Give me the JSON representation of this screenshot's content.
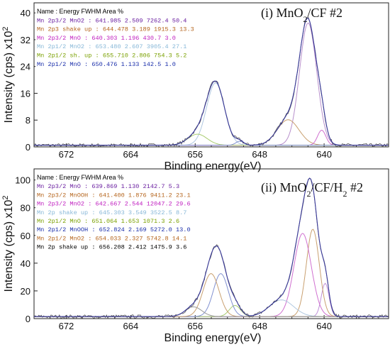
{
  "chart_data": [
    {
      "type": "line",
      "title": "(i) MnO2/CF #2",
      "title_main": "(i) MnO",
      "title_sub": "2",
      "title_tail": "/CF #2",
      "xlabel": "Binding energy(eV)",
      "ylabel": "Intensity (cps) x10",
      "ylabel_sup": "2",
      "xlim": [
        676,
        632
      ],
      "x_reversed": true,
      "ylim": [
        0,
        43
      ],
      "xticks": [
        "672",
        "664",
        "656",
        "648",
        "640"
      ],
      "xtick_values": [
        672,
        664,
        656,
        648,
        640
      ],
      "yticks": [
        "0",
        "8",
        "16",
        "24",
        "32",
        "40"
      ],
      "ytick_values": [
        0,
        8,
        16,
        24,
        32,
        40
      ],
      "legend_header": "Name : Energy  FWHM  Area  %",
      "legend": [
        {
          "text": "Mn 2p3/2 MnO2 : 641.985   2.509   7262.4   50.4",
          "color": "#6a1fa0"
        },
        {
          "text": "Mn 2p3 shake up : 644.478   3.189   1915.3   13.3",
          "color": "#b5651d"
        },
        {
          "text": "Mn 2p3/2 MnO : 640.303   1.196   430.7   3.0",
          "color": "#c020c0"
        },
        {
          "text": "Mn 2p1/2 MnO2 : 653.480   2.607   3905.4   27.1",
          "color": "#88b8d8"
        },
        {
          "text": "Mn 2p1/2 sh. up : 655.710   2.806   754.3   5.2",
          "color": "#7aa000"
        },
        {
          "text": "Mn 2p1/2 MnO : 650.476   1.133   142.5   1.0",
          "color": "#1a2eaa"
        }
      ],
      "components": [
        {
          "center": 641.985,
          "fwhm": 2.509,
          "height": 36.5,
          "color": "#b890cc"
        },
        {
          "center": 644.478,
          "fwhm": 3.189,
          "height": 7.6,
          "color": "#c9a070"
        },
        {
          "center": 640.303,
          "fwhm": 1.196,
          "height": 4.5,
          "color": "#d070d0"
        },
        {
          "center": 653.48,
          "fwhm": 2.607,
          "height": 18.6,
          "color": "#b0c8e0"
        },
        {
          "center": 655.71,
          "fwhm": 2.806,
          "height": 3.3,
          "color": "#a8cc70"
        },
        {
          "center": 650.476,
          "fwhm": 1.133,
          "height": 1.2,
          "color": "#8090d0"
        }
      ],
      "background": 0.5
    },
    {
      "type": "line",
      "title": "(ii) MnO2/CF/H2 #2",
      "title_main": "(ii) MnO",
      "title_sub": "2",
      "title_tail": "/CF/H",
      "title_sub2": "2",
      "title_tail2": " #2",
      "xlabel": "Binding energy(eV)",
      "ylabel": "Intensity (cps) x10",
      "ylabel_sup": "2",
      "xlim": [
        676,
        632
      ],
      "x_reversed": true,
      "ylim": [
        0,
        108
      ],
      "xticks": [
        "672",
        "664",
        "656",
        "648",
        "640"
      ],
      "xtick_values": [
        672,
        664,
        656,
        648,
        640
      ],
      "yticks": [
        "0",
        "20",
        "40",
        "60",
        "80",
        "100"
      ],
      "ytick_values": [
        0,
        20,
        40,
        60,
        80,
        100
      ],
      "legend_header": "Name : Energy  FWHM  Area  %",
      "legend": [
        {
          "text": "Mn 2p3/2 MnO : 639.869   1.130   2142.7   5.3",
          "color": "#6a1fa0"
        },
        {
          "text": "Mn 2p3/2 MnOOH : 641.400   1.876   9411.2   23.1",
          "color": "#b5651d"
        },
        {
          "text": "Mn 2p3/2 MnO2 : 642.667   2.544   12047.2   29.6",
          "color": "#c020c0"
        },
        {
          "text": "Mn 2p shake up : 645.303   3.549   3522.5   8.7",
          "color": "#88b8d8"
        },
        {
          "text": "Mn 2p1/2 MnO : 651.064   1.653   1071.3   2.6",
          "color": "#7aa000"
        },
        {
          "text": "Mn 2p1/2 MnOOH : 652.824   2.169   5272.0   13.0",
          "color": "#1a2eaa"
        },
        {
          "text": "Mn 2p1/2 MnO2 : 654.033   2.327   5742.8   14.1",
          "color": "#b5651d"
        },
        {
          "text": "Mn 2p shake up : 656.208   2.412   1475.9   3.6",
          "color": "#000000"
        }
      ],
      "components": [
        {
          "center": 639.869,
          "fwhm": 1.13,
          "height": 24,
          "color": "#c090d8"
        },
        {
          "center": 641.4,
          "fwhm": 1.876,
          "height": 63,
          "color": "#c9a070"
        },
        {
          "center": 642.667,
          "fwhm": 2.544,
          "height": 60,
          "color": "#d070d0"
        },
        {
          "center": 645.303,
          "fwhm": 3.549,
          "height": 12,
          "color": "#b0c8e0"
        },
        {
          "center": 651.064,
          "fwhm": 1.653,
          "height": 8,
          "color": "#a8cc70"
        },
        {
          "center": 652.824,
          "fwhm": 2.169,
          "height": 31,
          "color": "#8090d0"
        },
        {
          "center": 654.033,
          "fwhm": 2.327,
          "height": 31,
          "color": "#c9a070"
        },
        {
          "center": 656.208,
          "fwhm": 2.412,
          "height": 7,
          "color": "#999999"
        }
      ],
      "background": 1.5
    }
  ]
}
